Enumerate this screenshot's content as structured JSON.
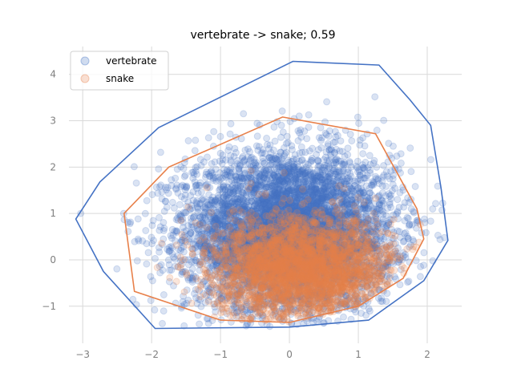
{
  "chart_data": {
    "type": "scatter",
    "title": "vertebrate -> snake; 0.59",
    "xlabel": "",
    "ylabel": "",
    "xlim": [
      -3.2,
      2.5
    ],
    "ylim": [
      -1.8,
      4.6
    ],
    "xticks": [
      -3,
      -2,
      -1,
      0,
      1,
      2
    ],
    "yticks": [
      -1,
      0,
      1,
      2,
      3,
      4
    ],
    "xtick_labels": [
      "−3",
      "−2",
      "−1",
      "0",
      "1",
      "2"
    ],
    "ytick_labels": [
      "−1",
      "0",
      "1",
      "2",
      "3",
      "4"
    ],
    "grid": true,
    "legend": "top-left",
    "series": [
      {
        "name": "vertebrate",
        "color": "#4472c4",
        "point_alpha": 0.2,
        "approx_points": 6000,
        "cloud_center": [
          0.0,
          0.6
        ],
        "cloud_spread": [
          0.75,
          0.85
        ],
        "hull": [
          [
            -3.1,
            0.88
          ],
          [
            -2.75,
            1.68
          ],
          [
            -1.9,
            2.85
          ],
          [
            0.05,
            4.28
          ],
          [
            1.3,
            4.2
          ],
          [
            1.75,
            3.45
          ],
          [
            2.05,
            2.9
          ],
          [
            2.2,
            1.55
          ],
          [
            2.3,
            0.42
          ],
          [
            1.95,
            -0.45
          ],
          [
            1.15,
            -1.3
          ],
          [
            0.0,
            -1.45
          ],
          [
            -1.95,
            -1.48
          ],
          [
            -2.7,
            -0.25
          ],
          [
            -3.1,
            0.88
          ]
        ]
      },
      {
        "name": "snake",
        "color": "#e8804a",
        "point_alpha": 0.2,
        "approx_points": 3000,
        "cloud_center": [
          0.2,
          -0.2
        ],
        "cloud_spread": [
          0.65,
          0.55
        ],
        "hull": [
          [
            -2.4,
            1.0
          ],
          [
            -1.75,
            2.0
          ],
          [
            -0.1,
            3.08
          ],
          [
            1.25,
            2.72
          ],
          [
            1.85,
            1.1
          ],
          [
            1.95,
            0.45
          ],
          [
            1.65,
            -0.4
          ],
          [
            1.0,
            -1.0
          ],
          [
            0.0,
            -1.35
          ],
          [
            -1.0,
            -1.3
          ],
          [
            -2.25,
            -0.68
          ],
          [
            -2.4,
            1.0
          ]
        ]
      }
    ]
  }
}
